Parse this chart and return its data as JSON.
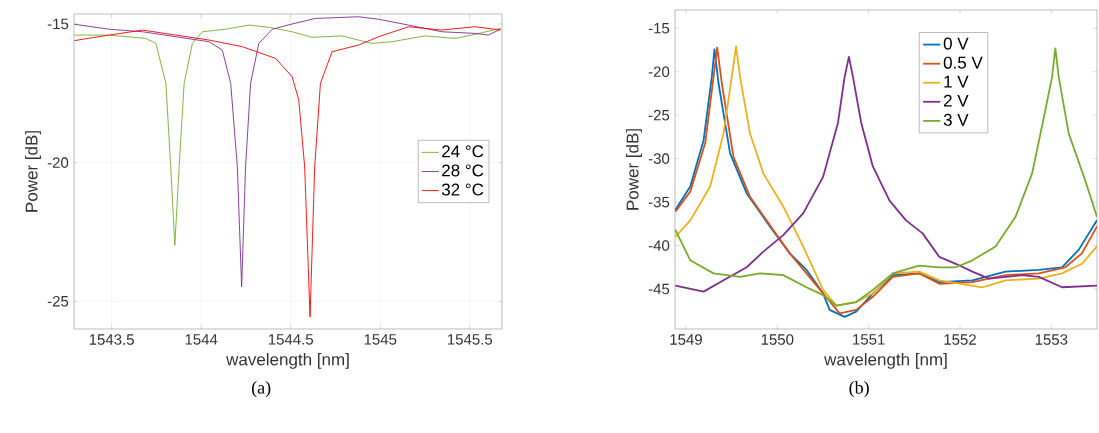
{
  "chart_data": [
    {
      "type": "line",
      "xlabel": "wavelength [nm]",
      "ylabel": "Power [dB]",
      "annotations": [
        "(a)"
      ],
      "xlim": [
        1543.29,
        1545.68
      ],
      "ylim": [
        -26,
        -14.64
      ],
      "xticks": [
        1543.5,
        1544,
        1544.5,
        1545,
        1545.5
      ],
      "yticks": [
        -15,
        -20,
        -25
      ],
      "grid": true,
      "legend": "right",
      "line_style": "solid",
      "marker": "none",
      "series": [
        {
          "name": "24 °C",
          "color": "#77ac30",
          "x": [
            1543.292,
            1543.487,
            1543.691,
            1543.747,
            1543.803,
            1543.83,
            1543.853,
            1543.877,
            1543.905,
            1543.951,
            1544.007,
            1544.137,
            1544.267,
            1544.378,
            1544.508,
            1544.619,
            1544.786,
            1544.953,
            1545.065,
            1545.251,
            1545.418,
            1545.51,
            1545.672
          ],
          "values": [
            -15.4,
            -15.4,
            -15.52,
            -15.7,
            -17.14,
            -20.15,
            -22.98,
            -20.15,
            -17.14,
            -15.7,
            -15.28,
            -15.19,
            -15.04,
            -15.12,
            -15.28,
            -15.48,
            -15.43,
            -15.7,
            -15.64,
            -15.43,
            -15.52,
            -15.4,
            -15.16
          ]
        },
        {
          "name": "28 °C",
          "color": "#7e2f8e",
          "x": [
            1543.292,
            1543.487,
            1543.673,
            1543.858,
            1544.044,
            1544.118,
            1544.165,
            1544.202,
            1544.226,
            1544.248,
            1544.276,
            1544.322,
            1544.397,
            1544.508,
            1544.638,
            1544.879,
            1544.991,
            1545.158,
            1545.343,
            1545.529,
            1545.603,
            1545.672
          ],
          "values": [
            -15.01,
            -15.19,
            -15.28,
            -15.46,
            -15.64,
            -15.94,
            -17.14,
            -20.15,
            -24.48,
            -20.15,
            -17.14,
            -15.7,
            -15.19,
            -15.0,
            -14.8,
            -14.74,
            -14.83,
            -15.04,
            -15.28,
            -15.34,
            -15.4,
            -15.19
          ]
        },
        {
          "name": "32 °C",
          "color": "#ff0000",
          "x": [
            1543.292,
            1543.487,
            1543.673,
            1543.858,
            1544.044,
            1544.23,
            1544.415,
            1544.508,
            1544.545,
            1544.578,
            1544.608,
            1544.634,
            1544.666,
            1544.731,
            1544.879,
            1544.991,
            1545.158,
            1545.343,
            1545.529,
            1545.672
          ],
          "values": [
            -15.6,
            -15.4,
            -15.22,
            -15.4,
            -15.58,
            -15.82,
            -16.24,
            -16.9,
            -17.74,
            -20.15,
            -25.57,
            -20.15,
            -17.14,
            -16.0,
            -15.76,
            -15.46,
            -15.1,
            -15.22,
            -15.1,
            -15.22
          ]
        }
      ]
    },
    {
      "type": "line",
      "xlabel": "wavelength [nm]",
      "ylabel": "Power [dB]",
      "annotations": [
        "(b)"
      ],
      "xlim": [
        1548.88,
        1553.5
      ],
      "ylim": [
        -49.6,
        -12.9
      ],
      "xticks": [
        1549,
        1550,
        1551,
        1552,
        1553
      ],
      "yticks": [
        -15,
        -20,
        -25,
        -30,
        -35,
        -40,
        -45
      ],
      "grid": false,
      "legend": "top",
      "line_style": "solid",
      "marker": "none",
      "series": [
        {
          "name": "0 V",
          "color": "#0072bd",
          "x": [
            1548.884,
            1549.047,
            1549.193,
            1549.283,
            1549.312,
            1549.356,
            1549.483,
            1549.665,
            1549.919,
            1550.137,
            1550.319,
            1550.501,
            1550.573,
            1550.737,
            1550.864,
            1551.046,
            1551.264,
            1551.554,
            1551.773,
            1552.136,
            1552.499,
            1552.863,
            1553.117,
            1553.299,
            1553.5
          ],
          "values": [
            -35.9,
            -33.2,
            -27.9,
            -20.6,
            -17.4,
            -21.3,
            -29.4,
            -34.0,
            -37.8,
            -40.9,
            -42.8,
            -45.5,
            -47.4,
            -48.2,
            -47.6,
            -45.5,
            -43.4,
            -43.2,
            -44.2,
            -44.0,
            -43.0,
            -42.8,
            -42.5,
            -40.5,
            -37.1
          ]
        },
        {
          "name": "0.5 V",
          "color": "#d95319",
          "x": [
            1548.884,
            1549.047,
            1549.211,
            1549.302,
            1549.342,
            1549.392,
            1549.52,
            1549.701,
            1549.956,
            1550.137,
            1550.319,
            1550.501,
            1550.683,
            1550.864,
            1551.046,
            1551.264,
            1551.554,
            1551.773,
            1552.136,
            1552.499,
            1552.863,
            1553.153,
            1553.335,
            1553.5
          ],
          "values": [
            -36.1,
            -33.8,
            -28.2,
            -20.6,
            -17.2,
            -21.3,
            -29.8,
            -34.4,
            -38.2,
            -40.9,
            -43.2,
            -45.5,
            -47.8,
            -47.4,
            -45.9,
            -43.6,
            -43.2,
            -44.4,
            -44.2,
            -43.4,
            -43.2,
            -42.5,
            -40.9,
            -37.8
          ]
        },
        {
          "name": "1 V",
          "color": "#edb120",
          "x": [
            1548.884,
            1549.047,
            1549.265,
            1549.411,
            1549.501,
            1549.549,
            1549.592,
            1549.701,
            1549.847,
            1550.065,
            1550.283,
            1550.501,
            1550.646,
            1550.864,
            1551.046,
            1551.264,
            1551.554,
            1551.773,
            1552.245,
            1552.499,
            1552.863,
            1553.117,
            1553.335,
            1553.5
          ],
          "values": [
            -39.0,
            -37.1,
            -33.2,
            -27.1,
            -20.6,
            -17.1,
            -20.6,
            -27.1,
            -31.7,
            -35.5,
            -40.1,
            -45.1,
            -46.9,
            -46.5,
            -45.5,
            -43.2,
            -43.0,
            -44.0,
            -44.8,
            -44.0,
            -43.8,
            -43.2,
            -42.1,
            -40.1
          ]
        },
        {
          "name": "2 V",
          "color": "#7e2f8e",
          "x": [
            1548.884,
            1549.193,
            1549.411,
            1549.665,
            1549.847,
            1550.065,
            1550.283,
            1550.501,
            1550.664,
            1550.737,
            1550.784,
            1550.828,
            1550.919,
            1551.046,
            1551.227,
            1551.409,
            1551.591,
            1551.773,
            1551.954,
            1552.136,
            1552.318,
            1552.681,
            1552.863,
            1553.117,
            1553.5
          ],
          "values": [
            -44.6,
            -45.3,
            -44.0,
            -42.5,
            -40.7,
            -38.8,
            -36.3,
            -32.1,
            -25.9,
            -20.6,
            -18.3,
            -20.6,
            -25.9,
            -30.9,
            -34.8,
            -37.1,
            -38.6,
            -41.3,
            -42.1,
            -43.0,
            -43.8,
            -43.4,
            -43.6,
            -44.8,
            -44.6
          ]
        },
        {
          "name": "3 V",
          "color": "#77ac30",
          "x": [
            1548.884,
            1549.047,
            1549.302,
            1549.592,
            1549.81,
            1550.065,
            1550.319,
            1550.501,
            1550.646,
            1550.864,
            1551.046,
            1551.264,
            1551.554,
            1551.773,
            1551.954,
            1552.136,
            1552.39,
            1552.608,
            1552.79,
            1552.935,
            1553.008,
            1553.044,
            1553.081,
            1553.19,
            1553.371,
            1553.5
          ],
          "values": [
            -38.2,
            -41.7,
            -43.2,
            -43.6,
            -43.2,
            -43.4,
            -44.8,
            -45.7,
            -46.9,
            -46.5,
            -45.1,
            -43.2,
            -42.3,
            -42.5,
            -42.5,
            -41.7,
            -40.1,
            -36.7,
            -31.7,
            -24.4,
            -20.6,
            -17.3,
            -20.6,
            -27.1,
            -32.5,
            -36.7
          ]
        }
      ]
    }
  ]
}
